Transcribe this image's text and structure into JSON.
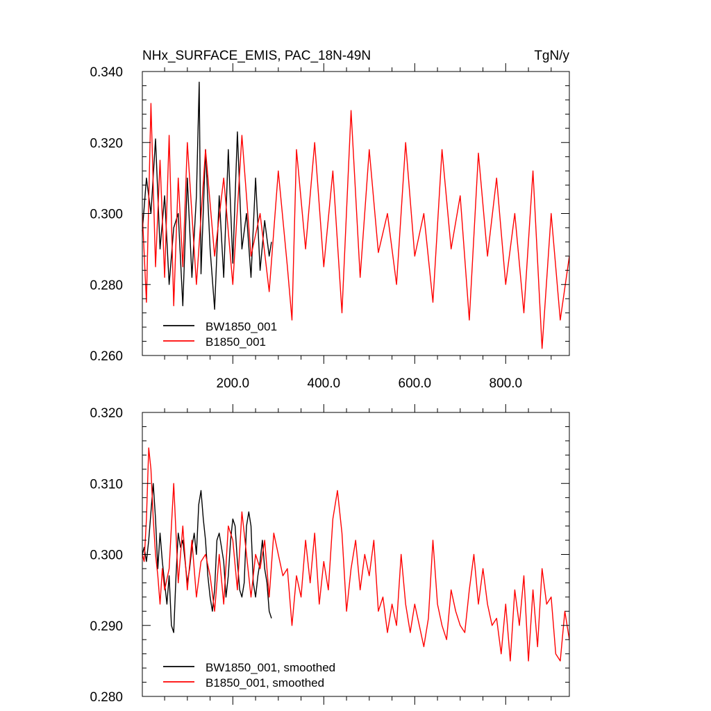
{
  "chart_data": [
    {
      "type": "line",
      "title": "NHx_SURFACE_EMIS, PAC_18N-49N",
      "units": "TgN/y",
      "xlim": [
        1,
        940
      ],
      "ylim": [
        0.26,
        0.34
      ],
      "yticks": [
        0.26,
        0.28,
        0.3,
        0.32,
        0.34
      ],
      "ytick_labels": [
        "0.260",
        "0.280",
        "0.300",
        "0.320",
        "0.340"
      ],
      "xticks": [
        200,
        400,
        600,
        800
      ],
      "xtick_labels": [
        "200.0",
        "400.0",
        "600.0",
        "800.0"
      ],
      "grid": false,
      "legend_position": "bottom-left",
      "series": [
        {
          "name": "BW1850_001",
          "color": "#000000",
          "x": [
            1,
            10,
            20,
            30,
            40,
            50,
            60,
            70,
            80,
            90,
            100,
            110,
            120,
            126,
            130,
            140,
            150,
            160,
            170,
            180,
            190,
            200,
            210,
            220,
            230,
            240,
            250,
            260,
            270,
            280,
            285
          ],
          "y": [
            0.295,
            0.31,
            0.3,
            0.321,
            0.29,
            0.305,
            0.28,
            0.296,
            0.3,
            0.274,
            0.31,
            0.282,
            0.305,
            0.337,
            0.283,
            0.318,
            0.29,
            0.273,
            0.305,
            0.282,
            0.318,
            0.286,
            0.323,
            0.29,
            0.3,
            0.282,
            0.31,
            0.284,
            0.298,
            0.288,
            0.292
          ]
        },
        {
          "name": "B1850_001",
          "color": "#ff0000",
          "x": [
            1,
            10,
            20,
            30,
            40,
            50,
            60,
            70,
            80,
            90,
            100,
            120,
            140,
            160,
            180,
            200,
            220,
            240,
            260,
            280,
            300,
            320,
            330,
            340,
            360,
            380,
            400,
            420,
            440,
            460,
            480,
            500,
            520,
            540,
            560,
            580,
            600,
            620,
            640,
            660,
            680,
            700,
            720,
            740,
            760,
            780,
            800,
            820,
            840,
            860,
            880,
            900,
            920,
            940
          ],
          "y": [
            0.3,
            0.275,
            0.331,
            0.285,
            0.315,
            0.282,
            0.322,
            0.274,
            0.31,
            0.285,
            0.32,
            0.28,
            0.318,
            0.288,
            0.31,
            0.28,
            0.322,
            0.288,
            0.3,
            0.278,
            0.312,
            0.285,
            0.27,
            0.318,
            0.29,
            0.32,
            0.285,
            0.312,
            0.272,
            0.329,
            0.282,
            0.318,
            0.289,
            0.3,
            0.28,
            0.32,
            0.288,
            0.3,
            0.275,
            0.318,
            0.29,
            0.305,
            0.27,
            0.317,
            0.288,
            0.31,
            0.28,
            0.3,
            0.272,
            0.312,
            0.262,
            0.3,
            0.27,
            0.288
          ]
        }
      ]
    },
    {
      "type": "line",
      "title": "",
      "xlim": [
        1,
        940
      ],
      "ylim": [
        0.28,
        0.32
      ],
      "yticks": [
        0.28,
        0.29,
        0.3,
        0.31,
        0.32
      ],
      "ytick_labels": [
        "0.280",
        "0.290",
        "0.300",
        "0.310",
        "0.320"
      ],
      "xticks": [
        200,
        400,
        600,
        800
      ],
      "xtick_labels": [],
      "grid": false,
      "legend_position": "bottom-left",
      "series": [
        {
          "name": "BW1850_001, smoothed",
          "color": "#000000",
          "x": [
            1,
            5,
            10,
            15,
            20,
            25,
            30,
            35,
            40,
            45,
            50,
            55,
            60,
            65,
            70,
            75,
            80,
            85,
            90,
            95,
            100,
            105,
            110,
            115,
            120,
            125,
            130,
            135,
            140,
            145,
            150,
            155,
            160,
            165,
            170,
            175,
            180,
            185,
            190,
            195,
            200,
            205,
            210,
            215,
            220,
            225,
            230,
            235,
            240,
            245,
            250,
            255,
            260,
            265,
            270,
            275,
            280,
            285
          ],
          "y": [
            0.3,
            0.301,
            0.299,
            0.302,
            0.306,
            0.31,
            0.305,
            0.298,
            0.303,
            0.299,
            0.296,
            0.293,
            0.297,
            0.29,
            0.289,
            0.297,
            0.303,
            0.301,
            0.302,
            0.299,
            0.296,
            0.298,
            0.301,
            0.303,
            0.3,
            0.307,
            0.309,
            0.305,
            0.302,
            0.297,
            0.294,
            0.292,
            0.295,
            0.302,
            0.303,
            0.301,
            0.299,
            0.294,
            0.297,
            0.302,
            0.305,
            0.304,
            0.299,
            0.295,
            0.294,
            0.296,
            0.304,
            0.306,
            0.304,
            0.296,
            0.294,
            0.297,
            0.299,
            0.302,
            0.298,
            0.296,
            0.292,
            0.291
          ]
        },
        {
          "name": "B1850_001, smoothed",
          "color": "#ff0000",
          "x": [
            1,
            5,
            10,
            15,
            20,
            25,
            30,
            35,
            40,
            45,
            50,
            60,
            70,
            80,
            90,
            100,
            110,
            120,
            130,
            140,
            150,
            160,
            170,
            180,
            190,
            200,
            210,
            220,
            230,
            240,
            250,
            260,
            270,
            280,
            290,
            300,
            310,
            320,
            330,
            340,
            350,
            360,
            370,
            380,
            390,
            400,
            410,
            420,
            430,
            440,
            450,
            460,
            470,
            480,
            490,
            500,
            510,
            520,
            530,
            540,
            550,
            560,
            570,
            580,
            590,
            600,
            610,
            620,
            630,
            640,
            650,
            660,
            670,
            680,
            690,
            700,
            710,
            720,
            730,
            740,
            750,
            760,
            770,
            780,
            790,
            800,
            810,
            820,
            830,
            840,
            850,
            860,
            870,
            880,
            890,
            900,
            910,
            920,
            930,
            940
          ],
          "y": [
            0.3,
            0.299,
            0.305,
            0.315,
            0.312,
            0.305,
            0.3,
            0.297,
            0.293,
            0.298,
            0.295,
            0.298,
            0.31,
            0.296,
            0.304,
            0.295,
            0.302,
            0.294,
            0.299,
            0.3,
            0.297,
            0.292,
            0.3,
            0.293,
            0.304,
            0.302,
            0.295,
            0.306,
            0.3,
            0.294,
            0.3,
            0.298,
            0.302,
            0.294,
            0.303,
            0.3,
            0.297,
            0.298,
            0.29,
            0.297,
            0.294,
            0.302,
            0.296,
            0.303,
            0.293,
            0.299,
            0.295,
            0.305,
            0.309,
            0.303,
            0.292,
            0.298,
            0.302,
            0.295,
            0.3,
            0.297,
            0.302,
            0.292,
            0.294,
            0.289,
            0.293,
            0.29,
            0.3,
            0.293,
            0.289,
            0.293,
            0.29,
            0.287,
            0.291,
            0.302,
            0.293,
            0.29,
            0.288,
            0.295,
            0.292,
            0.29,
            0.289,
            0.295,
            0.3,
            0.293,
            0.298,
            0.293,
            0.29,
            0.291,
            0.286,
            0.293,
            0.285,
            0.295,
            0.29,
            0.297,
            0.285,
            0.295,
            0.287,
            0.298,
            0.293,
            0.294,
            0.286,
            0.285,
            0.292,
            0.288
          ]
        }
      ]
    }
  ]
}
